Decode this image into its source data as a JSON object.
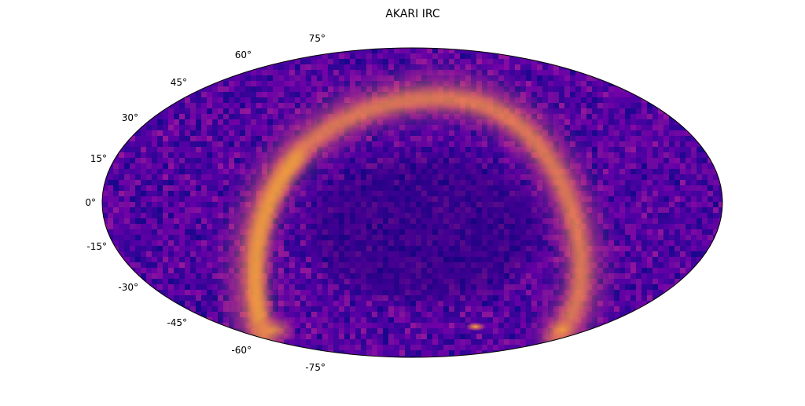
{
  "chart": {
    "title": "AKARI IRC",
    "projection": "mollweide",
    "colormap": "plasma",
    "background_color": "#4b03a1",
    "band_color": "#f89540",
    "latitude_ticks": [
      "75°",
      "60°",
      "45°",
      "30°",
      "15°",
      "0°",
      "-15°",
      "-30°",
      "-45°",
      "-60°",
      "-75°"
    ]
  }
}
